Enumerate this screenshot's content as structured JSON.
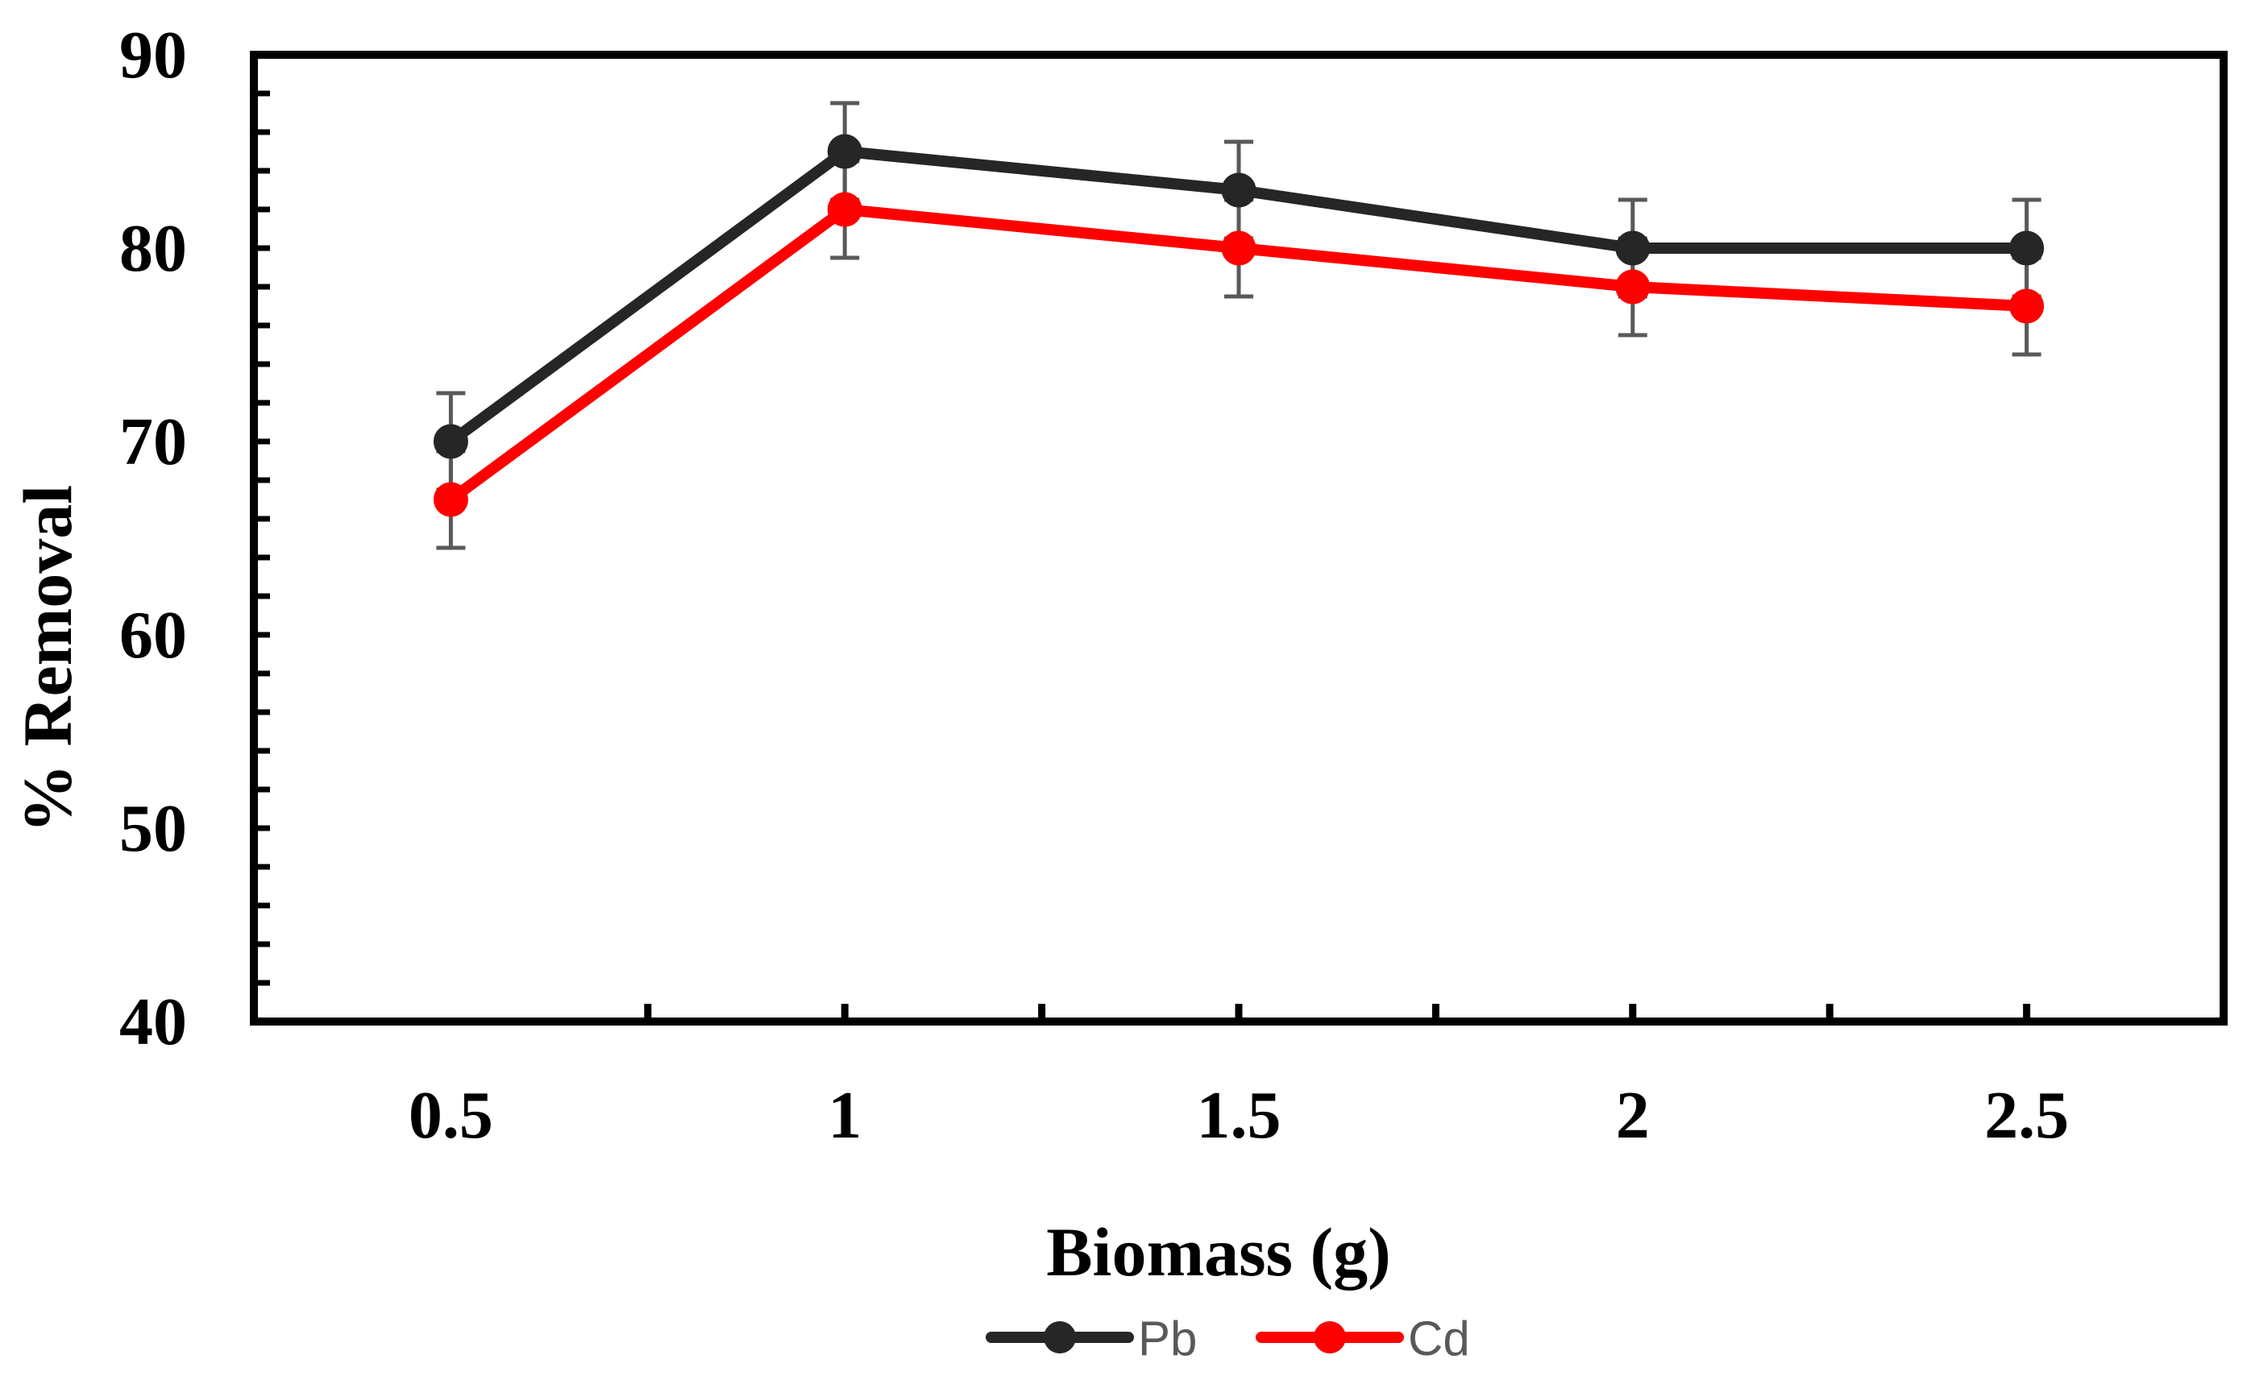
{
  "chart_data": {
    "type": "line",
    "title": "",
    "xlabel": "Biomass (g)",
    "ylabel": "% Removal",
    "x": [
      0.5,
      1,
      1.5,
      2,
      2.5
    ],
    "x_tick_labels": [
      "0.5",
      "1",
      "1.5",
      "2",
      "2.5"
    ],
    "xlim": [
      0.25,
      2.75
    ],
    "ylim": [
      40,
      90
    ],
    "y_ticks": [
      40,
      50,
      60,
      70,
      80,
      90
    ],
    "y_tick_labels": [
      "40",
      "50",
      "60",
      "70",
      "80",
      "90"
    ],
    "grid": false,
    "legend_position": "bottom-center",
    "series": [
      {
        "name": "Pb",
        "color": "#262626",
        "values": [
          70,
          85,
          83,
          80,
          80
        ],
        "error": [
          2.5,
          2.5,
          2.5,
          2.5,
          2.5
        ]
      },
      {
        "name": "Cd",
        "color": "#ff0000",
        "values": [
          67,
          82,
          80,
          78,
          77
        ],
        "error": [
          2.5,
          2.5,
          2.5,
          2.5,
          2.5
        ]
      }
    ]
  }
}
